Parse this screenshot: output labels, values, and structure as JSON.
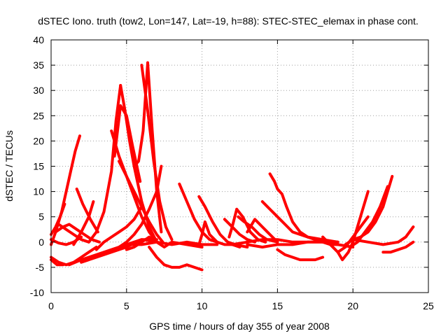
{
  "chart_data": {
    "type": "scatter",
    "title": "dSTEC Iono. truth (tow2, Lon=147, Lat=-19, h=88): STEC-STEC_elemax in phase cont.",
    "xlabel": "GPS time / hours of day 355 of year 2008",
    "ylabel": "dSTEC  / TECUs",
    "xlim": [
      0,
      25
    ],
    "ylim": [
      -10,
      40
    ],
    "xticks": [
      0,
      5,
      10,
      15,
      20,
      25
    ],
    "yticks": [
      -10,
      -5,
      0,
      5,
      10,
      15,
      20,
      25,
      30,
      35,
      40
    ],
    "grid": true,
    "marker": "plus",
    "color": "#ff0000",
    "series": [
      {
        "x": [
          0.0,
          0.3,
          0.7,
          1.0,
          1.3,
          1.6,
          1.9
        ],
        "y": [
          -0.5,
          2,
          6,
          10,
          14,
          18,
          21
        ]
      },
      {
        "x": [
          0.0,
          0.5,
          1.0,
          1.5,
          2.0
        ],
        "y": [
          0.5,
          -0.2,
          -0.5,
          0,
          1
        ]
      },
      {
        "x": [
          0.0,
          0.3,
          0.6,
          0.9
        ],
        "y": [
          1.5,
          3,
          5,
          7.5
        ]
      },
      {
        "x": [
          0.0,
          0.5,
          1.0,
          1.5,
          2.0,
          2.5,
          3.0
        ],
        "y": [
          -3,
          -4,
          -4.5,
          -4,
          -3,
          -2,
          -1
        ]
      },
      {
        "x": [
          0.0,
          0.4,
          0.8
        ],
        "y": [
          -3.5,
          -4.5,
          -4.5
        ]
      },
      {
        "x": [
          0.3,
          0.8,
          1.2,
          1.7,
          2.2,
          2.7,
          3.2
        ],
        "y": [
          2,
          3,
          3.5,
          2.5,
          1.5,
          0.5,
          0
        ]
      },
      {
        "x": [
          1.7,
          2.1,
          2.6,
          3.1
        ],
        "y": [
          10.5,
          7.5,
          4.5,
          2
        ]
      },
      {
        "x": [
          1.5,
          2.0,
          2.5,
          2.8
        ],
        "y": [
          -0.5,
          2,
          5,
          8
        ]
      },
      {
        "x": [
          0.5,
          1.0,
          1.5,
          2.0,
          2.5
        ],
        "y": [
          3.5,
          2.5,
          1.5,
          0.5,
          0
        ]
      },
      {
        "x": [
          1.2,
          2.0,
          3.0,
          4.0,
          5.0,
          6.0,
          7.0
        ],
        "y": [
          -4.5,
          -3.5,
          -2.5,
          -1.5,
          -0.5,
          0.5,
          0
        ]
      },
      {
        "x": [
          2.0,
          3.0,
          4.0,
          5.0,
          6.0,
          7.0
        ],
        "y": [
          -4,
          -3,
          -2,
          -1,
          0.5,
          0.5
        ]
      },
      {
        "x": [
          2.5,
          3.0,
          3.5,
          4.0,
          4.3,
          4.6
        ],
        "y": [
          0,
          2,
          6,
          14,
          24,
          31
        ]
      },
      {
        "x": [
          4.6,
          4.9,
          5.2,
          5.5,
          6.0,
          6.5,
          7.0
        ],
        "y": [
          31,
          26,
          20,
          15,
          8,
          3,
          0
        ]
      },
      {
        "x": [
          4.0,
          4.5,
          5.0,
          5.5,
          6.0,
          6.5,
          7.0
        ],
        "y": [
          22,
          17,
          13,
          9,
          5,
          2,
          0
        ]
      },
      {
        "x": [
          4.2,
          4.6,
          5.0,
          5.4,
          5.9
        ],
        "y": [
          17,
          27,
          25,
          19,
          12
        ]
      },
      {
        "x": [
          4.5,
          5.0,
          5.5,
          6.0,
          6.5,
          7.0,
          7.4
        ],
        "y": [
          16,
          13,
          10,
          7,
          4,
          1.5,
          0
        ]
      },
      {
        "x": [
          5.5,
          5.8,
          6.1,
          6.4,
          6.7,
          7.0,
          7.3
        ],
        "y": [
          15,
          16,
          22,
          35.5,
          22,
          10,
          2
        ]
      },
      {
        "x": [
          6.0,
          6.4,
          6.8,
          7.2,
          7.6,
          8.0
        ],
        "y": [
          35,
          26,
          16,
          8,
          3,
          0.5
        ]
      },
      {
        "x": [
          3.0,
          3.5,
          4.0,
          4.5,
          5.0,
          5.5,
          6.0
        ],
        "y": [
          -1.5,
          0,
          1,
          2,
          3,
          4.5,
          7
        ]
      },
      {
        "x": [
          4.5,
          5.0,
          5.5,
          6.0,
          6.5,
          7.0,
          7.3
        ],
        "y": [
          -1,
          0,
          1.5,
          3.5,
          6.5,
          10,
          15
        ]
      },
      {
        "x": [
          5.0,
          5.5,
          6.0,
          6.5,
          7.0,
          7.5,
          8.0,
          9.0,
          10.0
        ],
        "y": [
          -1.5,
          -1,
          0,
          1,
          0,
          -1,
          0,
          -0.5,
          -1
        ]
      },
      {
        "x": [
          6.5,
          7.0,
          7.5,
          8.0,
          8.5,
          9.0,
          9.5,
          10.0
        ],
        "y": [
          -1,
          -3,
          -4.5,
          -5,
          -5,
          -4.5,
          -5,
          -5.5
        ]
      },
      {
        "x": [
          5.0,
          6.0,
          7.0,
          8.0,
          9.0,
          10.0,
          11.0
        ],
        "y": [
          -0.5,
          -0.5,
          0,
          -0.5,
          0,
          -0.5,
          -0.5
        ]
      },
      {
        "x": [
          8.5,
          9.0,
          9.5,
          10.0,
          10.5,
          11.0,
          11.5,
          12.0,
          12.5
        ],
        "y": [
          11.5,
          8,
          4.5,
          2,
          0.5,
          0,
          -0.5,
          -0.5,
          -1
        ]
      },
      {
        "x": [
          9.8,
          10.2,
          10.7,
          11.2,
          11.7,
          12.2,
          13.0
        ],
        "y": [
          9,
          7,
          4,
          1.5,
          0,
          -0.5,
          -1
        ]
      },
      {
        "x": [
          9.8,
          10.0,
          10.2,
          10.5,
          11.0
        ],
        "y": [
          -0.5,
          1.5,
          4,
          1.5,
          0
        ]
      },
      {
        "x": [
          11.5,
          12.0,
          12.5,
          13.0,
          13.5
        ],
        "y": [
          4.5,
          3,
          1.5,
          0.5,
          0
        ]
      },
      {
        "x": [
          11.8,
          12.0,
          12.3
        ],
        "y": [
          1,
          3,
          6.5
        ]
      },
      {
        "x": [
          12.3,
          12.7,
          13.2,
          13.7,
          14.2
        ],
        "y": [
          6.5,
          5,
          2,
          0.5,
          0
        ]
      },
      {
        "x": [
          12.4,
          12.8,
          13.3,
          13.8,
          14.3,
          15.0
        ],
        "y": [
          5,
          4,
          3,
          1.5,
          0.5,
          0
        ]
      },
      {
        "x": [
          13.0,
          13.5,
          14.0,
          14.5,
          15.0
        ],
        "y": [
          2,
          4.5,
          3,
          1.5,
          0
        ]
      },
      {
        "x": [
          14.0,
          14.5,
          15.0,
          15.5,
          16.0,
          17.0,
          18.0,
          19.0
        ],
        "y": [
          8,
          6.5,
          5,
          3.5,
          2,
          1,
          0.5,
          0
        ]
      },
      {
        "x": [
          14.5,
          14.8,
          15.0,
          15.3,
          15.6,
          16.0,
          16.5,
          17.0,
          17.5,
          18.0,
          18.5,
          19.0
        ],
        "y": [
          13.5,
          12,
          10.5,
          9.5,
          7,
          4,
          2,
          1,
          0.5,
          0,
          -0.5,
          -0.5
        ]
      },
      {
        "x": [
          15.0,
          15.5,
          16.0,
          16.5,
          17.0,
          17.5,
          18.0
        ],
        "y": [
          -1.5,
          -2.5,
          -3,
          -3.5,
          -3.5,
          -3.5,
          -3
        ]
      },
      {
        "x": [
          12.0,
          13.0,
          14.0,
          15.0,
          16.0,
          17.0,
          18.0,
          19.0,
          20.0
        ],
        "y": [
          -0.5,
          0,
          0.5,
          0.5,
          0,
          0,
          0,
          -0.5,
          -1
        ]
      },
      {
        "x": [
          13.0,
          14.0,
          15.0,
          16.0,
          17.0,
          18.0,
          19.0
        ],
        "y": [
          -0.5,
          -1,
          -0.5,
          -0.5,
          0,
          0,
          0
        ]
      },
      {
        "x": [
          18.0,
          18.5,
          19.0,
          19.3,
          19.7,
          20.0,
          20.5,
          21.0
        ],
        "y": [
          1,
          -0.5,
          -2,
          -3.5,
          -2,
          0,
          5,
          10
        ]
      },
      {
        "x": [
          19.0,
          19.5,
          20.0,
          20.5,
          21.0
        ],
        "y": [
          -2,
          -1,
          1,
          3,
          5
        ]
      },
      {
        "x": [
          19.5,
          20.0,
          20.5,
          21.0,
          21.5,
          22.0,
          22.3,
          22.6
        ],
        "y": [
          -0.5,
          0.5,
          1,
          2,
          4,
          7,
          10,
          13
        ]
      },
      {
        "x": [
          19.8,
          20.3,
          20.8,
          21.3,
          21.8,
          22.3
        ],
        "y": [
          -1,
          0,
          2,
          4,
          7,
          11
        ]
      },
      {
        "x": [
          20.0,
          21.0,
          22.0,
          23.0,
          23.5,
          24.0
        ],
        "y": [
          0.5,
          0,
          -0.5,
          0,
          1,
          3
        ]
      },
      {
        "x": [
          22.0,
          22.5,
          23.0,
          23.5,
          24.0
        ],
        "y": [
          -2,
          -2,
          -1.5,
          -1,
          0
        ]
      }
    ]
  }
}
